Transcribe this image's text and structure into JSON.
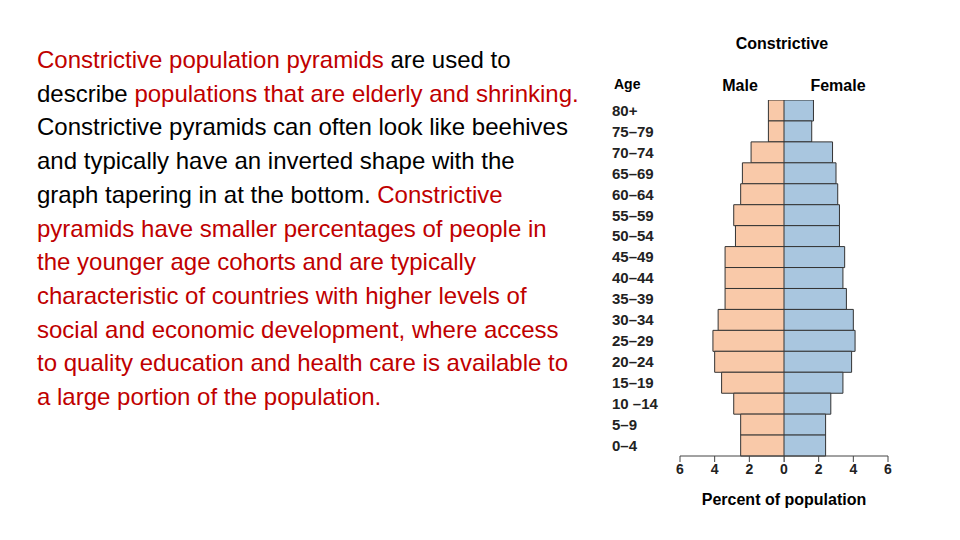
{
  "paragraph": [
    {
      "text": "Constrictive population pyramids",
      "color": "#c00000"
    },
    {
      "text": " are used to describe ",
      "color": "#000000"
    },
    {
      "text": "populations that are elderly and shrinking.",
      "color": "#c00000"
    },
    {
      "text": " Constrictive pyramids can often look like beehives and typically have an inverted shape with the graph tapering in at the bottom. ",
      "color": "#000000"
    },
    {
      "text": "Constrictive pyramids have smaller percentages of people in the younger age cohorts and are typically characteristic of countries with higher levels of social and economic development, where access to quality education and health care is available to a large portion of the population.",
      "color": "#c00000"
    }
  ],
  "chart_data": {
    "type": "bar",
    "orientation": "horizontal",
    "title": "Constrictive",
    "y_label": "Age",
    "x_label": "Percent of population",
    "categories": [
      "80+",
      "75–79",
      "70–74",
      "65–69",
      "60–64",
      "55–59",
      "50–54",
      "45–49",
      "40–44",
      "35–39",
      "30–34",
      "25–29",
      "20–24",
      "15–19",
      "10 –14",
      "5–9",
      "0–4"
    ],
    "series": [
      {
        "name": "Male",
        "color": "#f9c9a9",
        "values": [
          0.9,
          0.9,
          1.9,
          2.4,
          2.5,
          2.9,
          2.8,
          3.4,
          3.4,
          3.4,
          3.8,
          4.1,
          4.0,
          3.6,
          2.9,
          2.5,
          2.5
        ]
      },
      {
        "name": "Female",
        "color": "#a9c6df",
        "values": [
          1.7,
          1.6,
          2.8,
          3.0,
          3.1,
          3.2,
          3.2,
          3.5,
          3.4,
          3.6,
          4.0,
          4.1,
          3.9,
          3.4,
          2.7,
          2.4,
          2.4
        ]
      }
    ],
    "xlim": [
      0,
      6
    ],
    "xticks": [
      0,
      2,
      4,
      6
    ]
  }
}
